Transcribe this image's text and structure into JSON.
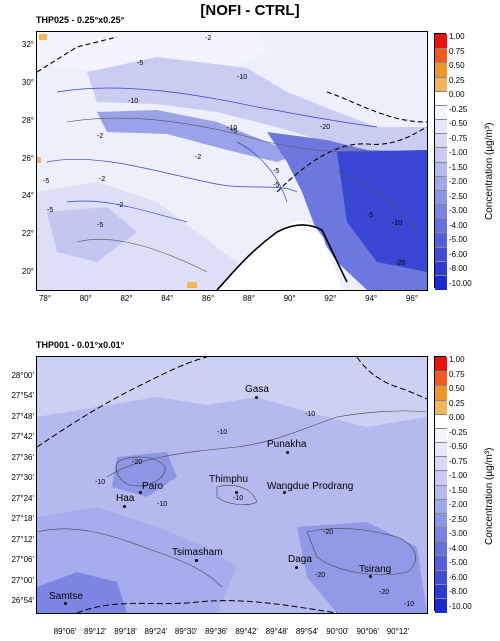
{
  "title": "[NOFI - CTRL]",
  "panels": [
    {
      "title": "THP025 - 0.25°x0.25°",
      "x_ticks": [
        "78°",
        "80°",
        "82°",
        "84°",
        "86°",
        "88°",
        "90°",
        "92°",
        "94°",
        "96°"
      ],
      "y_ticks": [
        "32°",
        "30°",
        "28°",
        "26°",
        "24°",
        "22°",
        "20°"
      ],
      "contour_labels": [
        "-2",
        "-5",
        "-10",
        "-20",
        "-2",
        "-5",
        "-2",
        "-5",
        "-10",
        "-5",
        "-2",
        "-5",
        "-10",
        "-20",
        "-5",
        "-5",
        "-5",
        "-2",
        "-10"
      ]
    },
    {
      "title": "THP001 - 0.01°x0.01°",
      "x_ticks": [
        "89°06'",
        "89°12'",
        "89°18'",
        "89°24'",
        "89°30'",
        "89°36'",
        "89°42'",
        "89°48'",
        "89°54'",
        "90°00'",
        "90°06'",
        "90°12'"
      ],
      "y_ticks": [
        "28°00'",
        "27°54'",
        "27°48'",
        "27°42'",
        "27°36'",
        "27°30'",
        "27°24'",
        "27°18'",
        "27°12'",
        "27°06'",
        "27°00'",
        "26°54'"
      ],
      "cities": [
        "Gasa",
        "Punakha",
        "Paro",
        "Thimphu",
        "Wangdue Prodrang",
        "Haa",
        "Tsimasham",
        "Daga",
        "Tsirang",
        "Samtse"
      ],
      "contour_labels": [
        "-10",
        "-10",
        "-20",
        "-10",
        "-10",
        "-10",
        "-20",
        "-20",
        "-20",
        "-10"
      ]
    }
  ],
  "colorbar": {
    "label": "Concentration (µg/m³)",
    "ticks": [
      "1.00",
      "0.75",
      "0.50",
      "0.25",
      "0.00",
      "-0.25",
      "-0.50",
      "-0.75",
      "-1.00",
      "-1.50",
      "-2.00",
      "-2.50",
      "-3.00",
      "-4.00",
      "-5.00",
      "-6.00",
      "-8.00",
      "-10.00"
    ],
    "colors": [
      "#e8140c",
      "#f05a1e",
      "#f0962a",
      "#f4b45a",
      "#ffffff",
      "#f4f4fc",
      "#e6e8f8",
      "#d6daf4",
      "#c8ccf2",
      "#b4baee",
      "#a0a8ea",
      "#8c94e6",
      "#7a82e2",
      "#6670de",
      "#545ed8",
      "#404cd4",
      "#2c3ad0",
      "#1c2ad0"
    ]
  }
}
